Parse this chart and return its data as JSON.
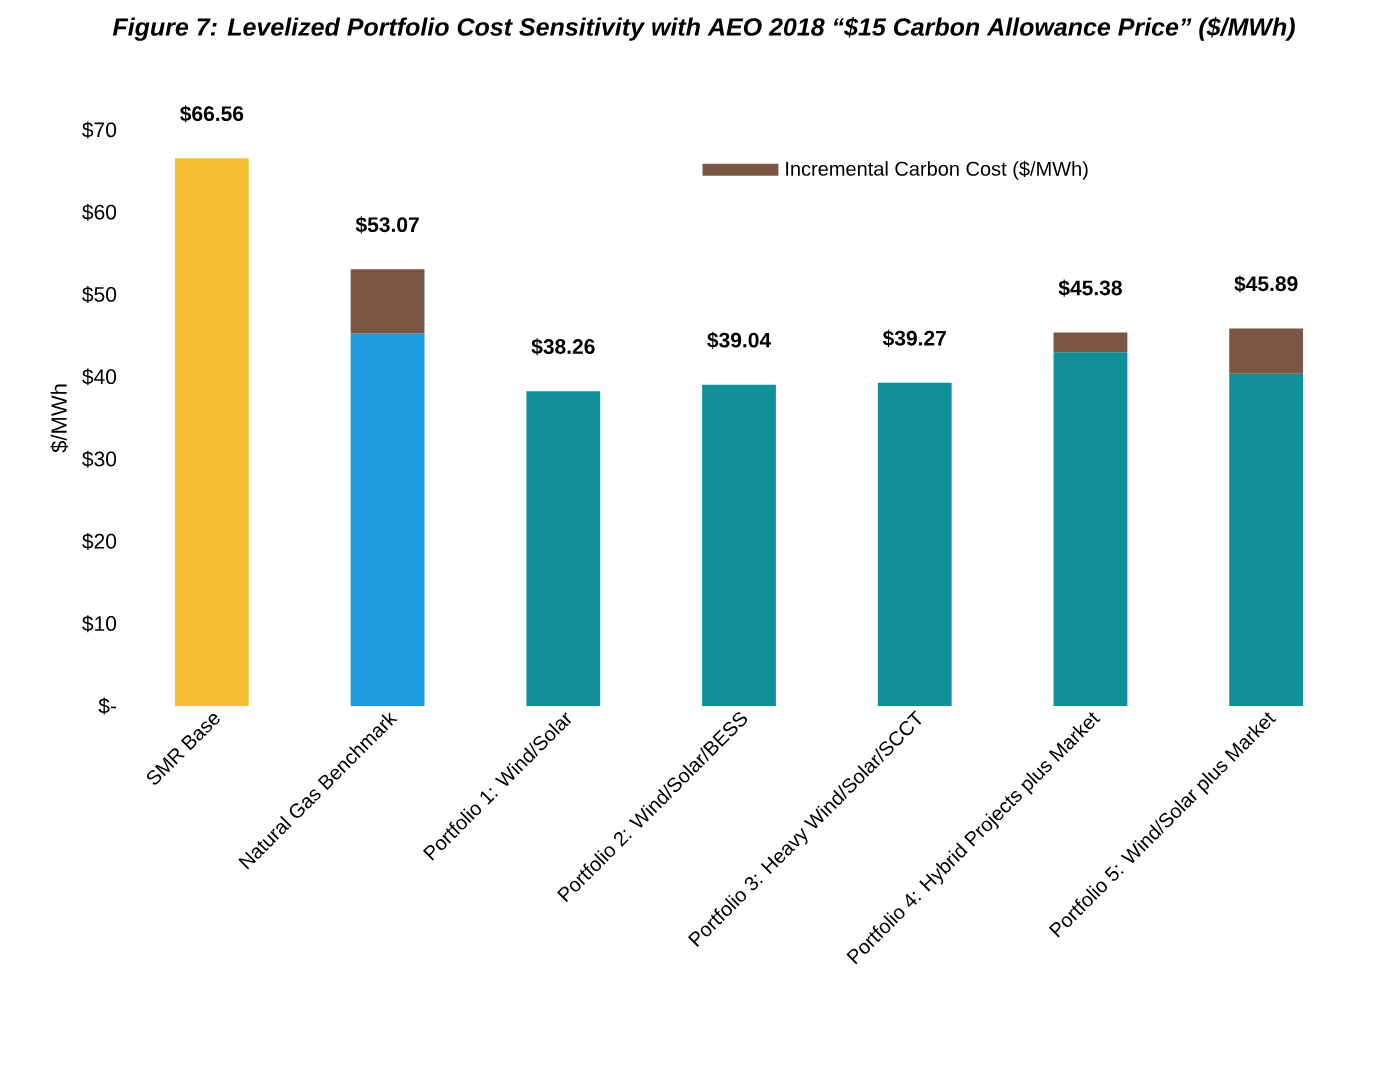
{
  "chart_data": {
    "type": "bar",
    "title": "Figure 7: Levelized Portfolio Cost Sensitivity with AEO 2018 “$15 Carbon Allowance Price” ($/MWh)",
    "ylabel": "$/MWh",
    "categories": [
      "SMR Base",
      "Natural Gas Benchmark",
      "Portfolio 1: Wind/Solar",
      "Portfolio 2: Wind/Solar/BESS",
      "Portfolio 3: Heavy Wind/Solar/SCCT",
      "Portfolio 4: Hybrid Projects plus Market",
      "Portfolio 5: Wind/Solar plus Market"
    ],
    "stacked": true,
    "series": [
      {
        "colors": [
          "#f8be34",
          "#1e9be0",
          "#12909a",
          "#12909a",
          "#12909a",
          "#12909a",
          "#12909a"
        ],
        "values": [
          66.56,
          45.27,
          38.26,
          39.04,
          39.27,
          42.98,
          40.39
        ]
      },
      {
        "name": "Incremental Carbon Cost ($/MWh)",
        "color": "#7b5644",
        "values": [
          0,
          7.8,
          0,
          0,
          0,
          2.4,
          5.5
        ]
      }
    ],
    "totals": [
      "$66.56",
      "$53.07",
      "$38.26",
      "$39.04",
      "$39.27",
      "$45.38",
      "$45.89"
    ],
    "ylim": [
      0,
      70
    ],
    "yticks": [
      {
        "value": 0,
        "label": "$-"
      },
      {
        "value": 10,
        "label": "$10"
      },
      {
        "value": 20,
        "label": "$20"
      },
      {
        "value": 30,
        "label": "$30"
      },
      {
        "value": 40,
        "label": "$40"
      },
      {
        "value": 50,
        "label": "$50"
      },
      {
        "value": 60,
        "label": "$60"
      },
      {
        "value": 70,
        "label": "$70"
      }
    ],
    "grid": false,
    "legend": "top right"
  }
}
